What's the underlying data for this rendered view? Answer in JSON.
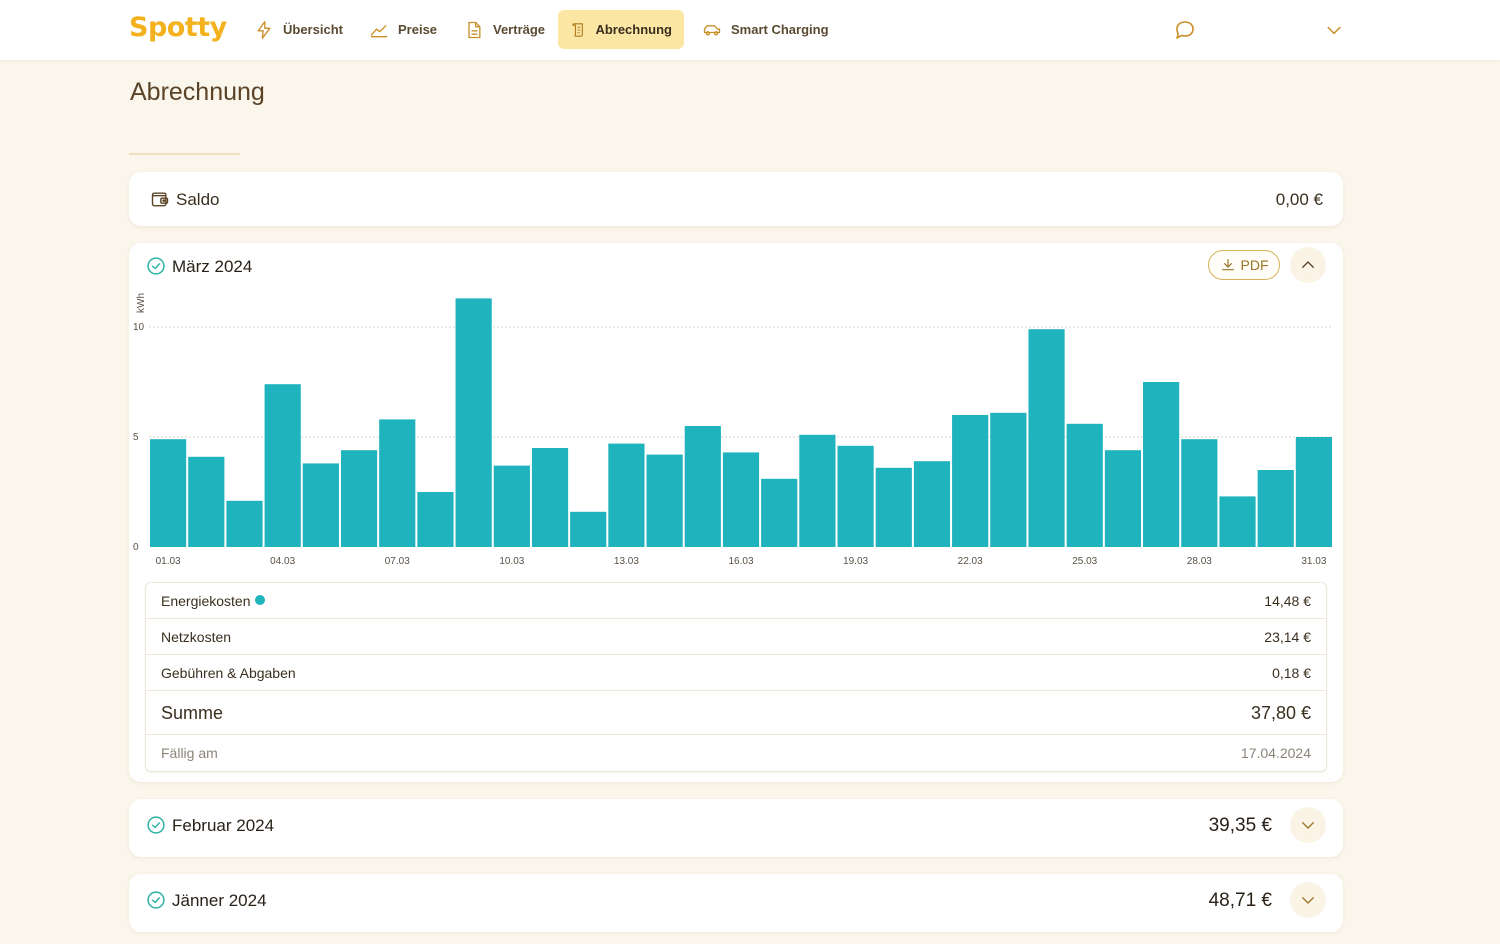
{
  "app": {
    "logo": "Spotty",
    "accent_color": "#f3b21d",
    "nav": [
      {
        "label": "Übersicht",
        "icon": "bolt-icon"
      },
      {
        "label": "Preise",
        "icon": "trend-line-icon"
      },
      {
        "label": "Verträge",
        "icon": "document-icon"
      },
      {
        "label": "Abrechnung",
        "icon": "receipt-icon",
        "active": true
      },
      {
        "label": "Smart Charging",
        "icon": "car-icon"
      }
    ]
  },
  "page": {
    "title": "Abrechnung"
  },
  "saldo": {
    "label": "Saldo",
    "value": "0,00 €"
  },
  "march": {
    "title": "März 2024",
    "pdf_label": "PDF",
    "rows": [
      {
        "label": "Energiekosten",
        "value": "14,48 €"
      },
      {
        "label": "Netzkosten",
        "value": "23,14 €"
      },
      {
        "label": "Gebühren & Abgaben",
        "value": "0,18 €"
      },
      {
        "label": "Summe",
        "value": "37,80 €"
      },
      {
        "label": "Fällig am",
        "value": "17.04.2024"
      }
    ]
  },
  "february": {
    "title": "Februar 2024",
    "amount": "39,35 €"
  },
  "january": {
    "title": "Jänner 2024",
    "amount": "48,71 €"
  },
  "chart_data": {
    "type": "bar",
    "ylabel": "kWh",
    "ylim": [
      0,
      12
    ],
    "yticks": [
      0,
      5,
      10
    ],
    "grid": true,
    "bar_color": "#1fb3bd",
    "categories": [
      "01.03",
      "02.03",
      "03.03",
      "04.03",
      "05.03",
      "06.03",
      "07.03",
      "08.03",
      "09.03",
      "10.03",
      "11.03",
      "12.03",
      "13.03",
      "14.03",
      "15.03",
      "16.03",
      "17.03",
      "18.03",
      "19.03",
      "20.03",
      "21.03",
      "22.03",
      "23.03",
      "24.03",
      "25.03",
      "26.03",
      "27.03",
      "28.03",
      "29.03",
      "30.03",
      "31.03"
    ],
    "xtick_labels": [
      "01.03",
      "04.03",
      "07.03",
      "10.03",
      "13.03",
      "16.03",
      "19.03",
      "22.03",
      "25.03",
      "28.03",
      "31.03"
    ],
    "values": [
      4.9,
      4.1,
      2.1,
      7.4,
      3.8,
      4.4,
      5.8,
      2.5,
      11.3,
      3.7,
      4.5,
      1.6,
      4.7,
      4.2,
      5.5,
      4.3,
      3.1,
      5.1,
      4.6,
      3.6,
      3.9,
      6.0,
      6.1,
      9.9,
      5.6,
      4.4,
      7.5,
      4.9,
      2.3,
      3.5,
      5.0
    ]
  }
}
